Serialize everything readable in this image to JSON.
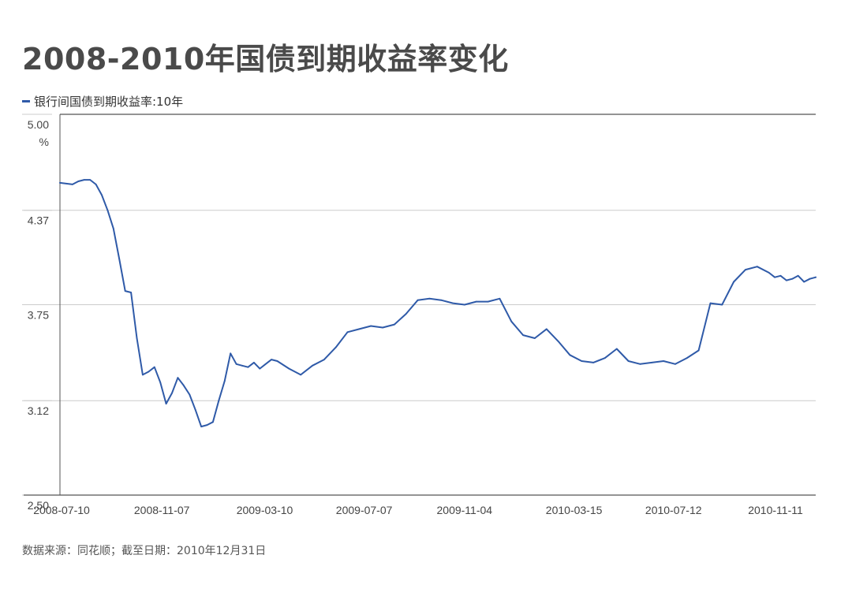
{
  "colors": {
    "title": "#4a4a4a",
    "series": "#2f5aa8",
    "grid": "#cccccc",
    "axis": "#555555"
  },
  "chart_data": {
    "type": "line",
    "title": "2008-2010年国债到期收益率变化",
    "xlabel": "",
    "ylabel": "",
    "yunit": "%",
    "ylim": [
      2.5,
      5.0
    ],
    "xlim": [
      "2008-07-10",
      "2010-12-31"
    ],
    "yticks": [
      "5.00",
      "4.37",
      "3.75",
      "3.12",
      "2.50"
    ],
    "xticks": [
      "2008-07-10",
      "2008-11-07",
      "2009-03-10",
      "2009-07-07",
      "2009-11-04",
      "2010-03-15",
      "2010-07-12",
      "2010-11-11"
    ],
    "grid": true,
    "legend_position": "top-left",
    "series": [
      {
        "name": "银行间国债到期收益率:10年",
        "color": "#2f5aa8",
        "x": [
          "2008-07-10",
          "2008-07-25",
          "2008-08-01",
          "2008-08-08",
          "2008-08-15",
          "2008-08-22",
          "2008-08-29",
          "2008-09-05",
          "2008-09-12",
          "2008-09-19",
          "2008-09-26",
          "2008-10-03",
          "2008-10-10",
          "2008-10-17",
          "2008-10-24",
          "2008-10-31",
          "2008-11-07",
          "2008-11-14",
          "2008-11-21",
          "2008-11-28",
          "2008-12-05",
          "2008-12-12",
          "2008-12-19",
          "2008-12-26",
          "2009-01-02",
          "2009-01-09",
          "2009-01-16",
          "2009-01-23",
          "2009-01-30",
          "2009-02-06",
          "2009-02-13",
          "2009-02-20",
          "2009-02-27",
          "2009-03-06",
          "2009-03-13",
          "2009-03-20",
          "2009-03-27",
          "2009-04-10",
          "2009-04-24",
          "2009-05-08",
          "2009-05-22",
          "2009-06-05",
          "2009-06-19",
          "2009-07-03",
          "2009-07-17",
          "2009-07-31",
          "2009-08-14",
          "2009-08-28",
          "2009-09-11",
          "2009-09-25",
          "2009-10-09",
          "2009-10-23",
          "2009-11-06",
          "2009-11-20",
          "2009-12-04",
          "2009-12-18",
          "2010-01-01",
          "2010-01-15",
          "2010-01-29",
          "2010-02-12",
          "2010-02-26",
          "2010-03-12",
          "2010-03-26",
          "2010-04-09",
          "2010-04-23",
          "2010-05-07",
          "2010-05-21",
          "2010-06-04",
          "2010-06-18",
          "2010-07-02",
          "2010-07-16",
          "2010-07-30",
          "2010-08-13",
          "2010-08-27",
          "2010-09-10",
          "2010-09-24",
          "2010-10-08",
          "2010-10-22",
          "2010-11-05",
          "2010-11-12",
          "2010-11-19",
          "2010-11-26",
          "2010-12-03",
          "2010-12-10",
          "2010-12-17",
          "2010-12-24",
          "2010-12-31"
        ],
        "values": [
          4.55,
          4.54,
          4.56,
          4.57,
          4.57,
          4.54,
          4.47,
          4.37,
          4.25,
          4.05,
          3.84,
          3.83,
          3.53,
          3.29,
          3.31,
          3.34,
          3.24,
          3.1,
          3.17,
          3.27,
          3.22,
          3.16,
          3.06,
          2.95,
          2.96,
          2.98,
          3.12,
          3.25,
          3.43,
          3.36,
          3.35,
          3.34,
          3.37,
          3.33,
          3.36,
          3.39,
          3.38,
          3.33,
          3.29,
          3.35,
          3.39,
          3.47,
          3.57,
          3.59,
          3.61,
          3.6,
          3.62,
          3.69,
          3.78,
          3.79,
          3.78,
          3.76,
          3.75,
          3.77,
          3.77,
          3.79,
          3.64,
          3.55,
          3.53,
          3.59,
          3.51,
          3.42,
          3.38,
          3.37,
          3.4,
          3.46,
          3.38,
          3.36,
          3.37,
          3.38,
          3.36,
          3.4,
          3.45,
          3.76,
          3.75,
          3.9,
          3.98,
          4.0,
          3.96,
          3.93,
          3.94,
          3.91,
          3.92,
          3.94,
          3.9,
          3.92,
          3.93
        ]
      }
    ]
  },
  "source": "数据来源：同花顺；截至日期：2010年12月31日"
}
